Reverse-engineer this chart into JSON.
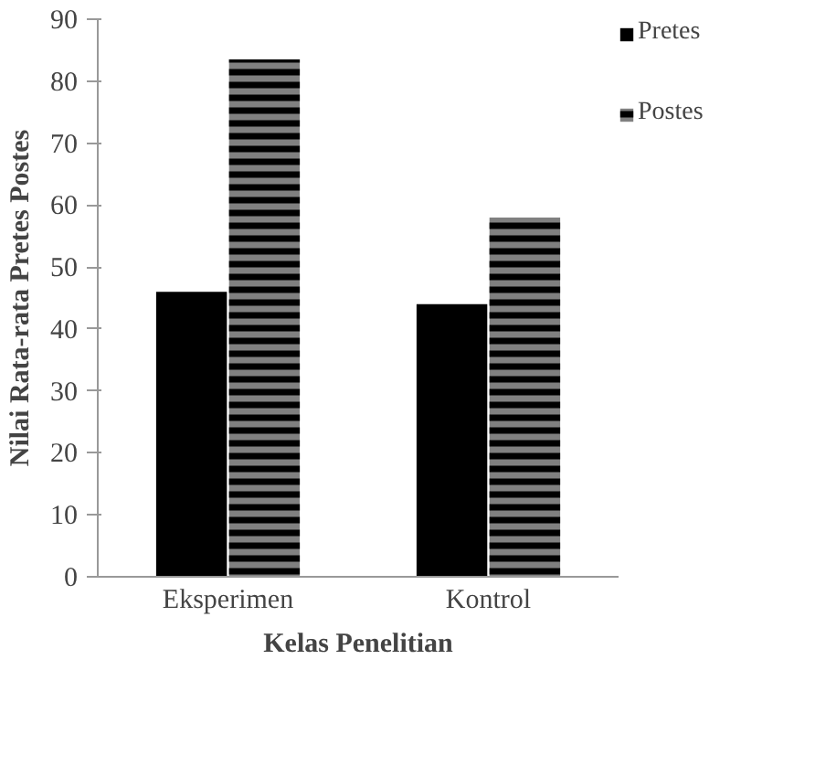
{
  "chart_data": {
    "type": "bar",
    "xlabel": "Kelas Penelitian",
    "ylabel": "Nilai Rata-rata Pretes Postes",
    "categories": [
      "Eksperimen",
      "Kontrol"
    ],
    "series": [
      {
        "name": "Pretes",
        "color": "#000000",
        "values": [
          46,
          44
        ]
      },
      {
        "name": "Postes",
        "color": "#808080",
        "values": [
          83.5,
          58
        ]
      }
    ],
    "ylim": [
      0,
      90
    ],
    "yticks": [
      0,
      10,
      20,
      30,
      40,
      50,
      60,
      70,
      80,
      90
    ],
    "grid": false,
    "legend": "right"
  }
}
